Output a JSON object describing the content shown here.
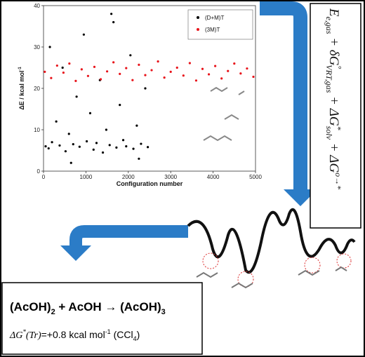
{
  "chart_data": {
    "type": "scatter",
    "xlabel": "Configuration number",
    "ylabel": [
      "ΔE / kcal mol",
      "-1"
    ],
    "xlim": [
      0,
      5000
    ],
    "xticks": [
      0,
      1000,
      2000,
      3000,
      4000,
      5000
    ],
    "ylim": [
      0,
      40
    ],
    "yticks": [
      0,
      10,
      20,
      30,
      40
    ],
    "legend": "top-right",
    "series": [
      {
        "name": "(D+M)T",
        "color": "#000000",
        "x": [
          50,
          120,
          200,
          300,
          380,
          450,
          520,
          600,
          700,
          780,
          850,
          950,
          1020,
          1100,
          1180,
          1250,
          1330,
          1400,
          1480,
          1560,
          1650,
          1720,
          1800,
          1880,
          1950,
          2050,
          2120,
          2200,
          2300,
          2400,
          2460,
          150,
          650,
          1600,
          2250
        ],
        "values": [
          6,
          5.5,
          7,
          12,
          6.2,
          25,
          4.8,
          9,
          6.5,
          18,
          5.9,
          33,
          7.2,
          14,
          5.2,
          6.8,
          22,
          4.5,
          10,
          6.3,
          36,
          5.7,
          16,
          7.5,
          6,
          28,
          5.4,
          11,
          6.6,
          20,
          5.8,
          30,
          2,
          38,
          3
        ]
      },
      {
        "name": "(3M)T",
        "color": "#e8141b",
        "x": [
          30,
          180,
          320,
          470,
          610,
          760,
          900,
          1050,
          1200,
          1350,
          1500,
          1650,
          1800,
          1950,
          2100,
          2250,
          2400,
          2550,
          2700,
          2850,
          3000,
          3150,
          3300,
          3450,
          3600,
          3750,
          3900,
          4050,
          4200,
          4350,
          4500,
          4650,
          4800,
          4950
        ],
        "values": [
          24,
          22.5,
          25.5,
          23.8,
          26,
          21.8,
          24.6,
          23,
          25.2,
          22.2,
          24.1,
          26.3,
          23.5,
          24.9,
          22,
          25.7,
          23.2,
          24.4,
          26.5,
          22.6,
          24,
          25,
          23.1,
          26.1,
          21.9,
          24.7,
          23.4,
          25.4,
          22.4,
          24.2,
          26,
          23.6,
          24.8,
          22.8
        ]
      }
    ]
  },
  "formula": [
    "E",
    "e,gas",
    " + δG",
    "°",
    "VRT,gas",
    " + ΔG",
    "*",
    "solv",
    " + ΔG",
    "o→*"
  ],
  "reaction": [
    "(AcOH)",
    "2",
    " + AcOH → (AcOH)",
    "3"
  ],
  "energy": [
    "ΔG",
    "*",
    "(Tr)",
    "=+0.8 kcal mol",
    "-1",
    " (CCl",
    "4",
    ")"
  ]
}
